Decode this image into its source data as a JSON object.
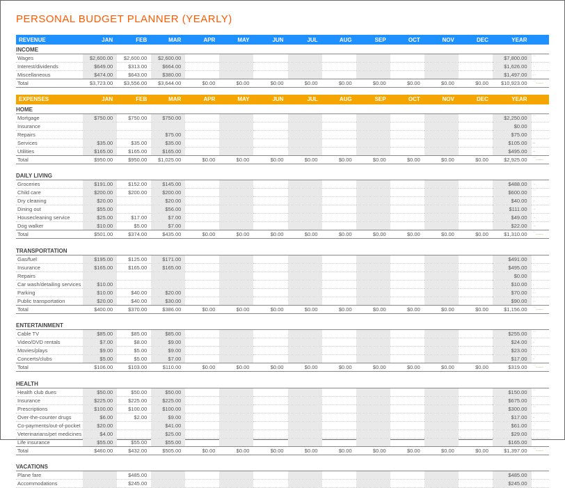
{
  "title": "PERSONAL BUDGET PLANNER (YEARLY)",
  "months": [
    "JAN",
    "FEB",
    "MAR",
    "APR",
    "MAY",
    "JUN",
    "JUL",
    "AUG",
    "SEP",
    "OCT",
    "NOV",
    "DEC"
  ],
  "yearLabel": "YEAR",
  "revenueHeader": "REVENUE",
  "expensesHeader": "EXPENSES",
  "incomeSection": {
    "name": "INCOME",
    "rows": [
      {
        "label": "Wages",
        "vals": [
          "$2,600.00",
          "$2,600.00",
          "$2,600.00",
          "",
          "",
          "",
          "",
          "",
          "",
          "",
          "",
          ""
        ],
        "year": "$7,800.00",
        "spark": "ˈˈˈ"
      },
      {
        "label": "Interest/dividends",
        "vals": [
          "$649.00",
          "$313.00",
          "$664.00",
          "",
          "",
          "",
          "",
          "",
          "",
          "",
          "",
          ""
        ],
        "year": "$1,626.00",
        "spark": "ˈ.ˈ"
      },
      {
        "label": "Miscellaneous",
        "vals": [
          "$474.00",
          "$643.00",
          "$380.00",
          "",
          "",
          "",
          "",
          "",
          "",
          "",
          "",
          ""
        ],
        "year": "$1,497.00",
        "spark": ".ˈ."
      }
    ],
    "total": {
      "label": "Total",
      "vals": [
        "$3,723.00",
        "$3,556.00",
        "$3,644.00",
        "$0.00",
        "$0.00",
        "$0.00",
        "$0.00",
        "$0.00",
        "$0.00",
        "$0.00",
        "$0.00",
        "$0.00"
      ],
      "year": "$10,923.00",
      "spark": "ˈˈˈ........."
    }
  },
  "expenseSections": [
    {
      "name": "HOME",
      "rows": [
        {
          "label": "Mortgage",
          "vals": [
            "$750.00",
            "$750.00",
            "$750.00",
            "",
            "",
            "",
            "",
            "",
            "",
            "",
            "",
            ""
          ],
          "year": "$2,250.00",
          "spark": "ˈˈˈ"
        },
        {
          "label": "Insurance",
          "vals": [
            "",
            "",
            "",
            "",
            "",
            "",
            "",
            "",
            "",
            "",
            "",
            ""
          ],
          "year": "$0.00",
          "spark": ""
        },
        {
          "label": "Repairs",
          "vals": [
            "",
            "",
            "$75.00",
            "",
            "",
            "",
            "",
            "",
            "",
            "",
            "",
            ""
          ],
          "year": "$75.00",
          "spark": "  ˈ"
        },
        {
          "label": "Services",
          "vals": [
            "$35.00",
            "$35.00",
            "$35.00",
            "",
            "",
            "",
            "",
            "",
            "",
            "",
            "",
            ""
          ],
          "year": "$105.00",
          "spark": "..."
        },
        {
          "label": "Utilities",
          "vals": [
            "$165.00",
            "$165.00",
            "$165.00",
            "",
            "",
            "",
            "",
            "",
            "",
            "",
            "",
            ""
          ],
          "year": "$495.00",
          "spark": "..."
        }
      ],
      "total": {
        "label": "Total",
        "vals": [
          "$950.00",
          "$950.00",
          "$1,025.00",
          "$0.00",
          "$0.00",
          "$0.00",
          "$0.00",
          "$0.00",
          "$0.00",
          "$0.00",
          "$0.00",
          "$0.00"
        ],
        "year": "$2,925.00",
        "spark": "ˈˈˈ........."
      }
    },
    {
      "name": "DAILY LIVING",
      "rows": [
        {
          "label": "Groceries",
          "vals": [
            "$191.00",
            "$152.00",
            "$145.00",
            "",
            "",
            "",
            "",
            "",
            "",
            "",
            "",
            ""
          ],
          "year": "$488.00",
          "spark": "ˈ.."
        },
        {
          "label": "Child care",
          "vals": [
            "$200.00",
            "$200.00",
            "$200.00",
            "",
            "",
            "",
            "",
            "",
            "",
            "",
            "",
            ""
          ],
          "year": "$600.00",
          "spark": "ˈˈˈ"
        },
        {
          "label": "Dry cleaning",
          "vals": [
            "$20.00",
            "",
            "$20.00",
            "",
            "",
            "",
            "",
            "",
            "",
            "",
            "",
            ""
          ],
          "year": "$40.00",
          "spark": ". ."
        },
        {
          "label": "Dining out",
          "vals": [
            "$55.00",
            "",
            "$56.00",
            "",
            "",
            "",
            "",
            "",
            "",
            "",
            "",
            ""
          ],
          "year": "$111.00",
          "spark": ". ."
        },
        {
          "label": "Housecleaning service",
          "vals": [
            "$25.00",
            "$17.00",
            "$7.00",
            "",
            "",
            "",
            "",
            "",
            "",
            "",
            "",
            ""
          ],
          "year": "$49.00",
          "spark": "ˈ.."
        },
        {
          "label": "Dog walker",
          "vals": [
            "$10.00",
            "$5.00",
            "$7.00",
            "",
            "",
            "",
            "",
            "",
            "",
            "",
            "",
            ""
          ],
          "year": "$22.00",
          "spark": "ˈ.."
        }
      ],
      "total": {
        "label": "Total",
        "vals": [
          "$501.00",
          "$374.00",
          "$435.00",
          "$0.00",
          "$0.00",
          "$0.00",
          "$0.00",
          "$0.00",
          "$0.00",
          "$0.00",
          "$0.00",
          "$0.00"
        ],
        "year": "$1,310.00",
        "spark": "ˈˈˈ........."
      }
    },
    {
      "name": "TRANSPORTATION",
      "rows": [
        {
          "label": "Gas/fuel",
          "vals": [
            "$195.00",
            "$125.00",
            "$171.00",
            "",
            "",
            "",
            "",
            "",
            "",
            "",
            "",
            ""
          ],
          "year": "$491.00",
          "spark": "ˈ.ˈ"
        },
        {
          "label": "Insurance",
          "vals": [
            "$165.00",
            "$165.00",
            "$165.00",
            "",
            "",
            "",
            "",
            "",
            "",
            "",
            "",
            ""
          ],
          "year": "$495.00",
          "spark": "ˈˈˈ"
        },
        {
          "label": "Repairs",
          "vals": [
            "",
            "",
            "",
            "",
            "",
            "",
            "",
            "",
            "",
            "",
            "",
            ""
          ],
          "year": "$0.00",
          "spark": ""
        },
        {
          "label": "Car wash/detailing services",
          "vals": [
            "$10.00",
            "",
            "",
            "",
            "",
            "",
            "",
            "",
            "",
            "",
            "",
            ""
          ],
          "year": "$10.00",
          "spark": "."
        },
        {
          "label": "Parking",
          "vals": [
            "$10.00",
            "$40.00",
            "$20.00",
            "",
            "",
            "",
            "",
            "",
            "",
            "",
            "",
            ""
          ],
          "year": "$70.00",
          "spark": ".ˈ."
        },
        {
          "label": "Public transportation",
          "vals": [
            "$20.00",
            "$40.00",
            "$30.00",
            "",
            "",
            "",
            "",
            "",
            "",
            "",
            "",
            ""
          ],
          "year": "$90.00",
          "spark": ".ˈ."
        }
      ],
      "total": {
        "label": "Total",
        "vals": [
          "$400.00",
          "$370.00",
          "$386.00",
          "$0.00",
          "$0.00",
          "$0.00",
          "$0.00",
          "$0.00",
          "$0.00",
          "$0.00",
          "$0.00",
          "$0.00"
        ],
        "year": "$1,156.00",
        "spark": "ˈˈˈ........."
      }
    },
    {
      "name": "ENTERTAINMENT",
      "rows": [
        {
          "label": "Cable TV",
          "vals": [
            "$85.00",
            "$85.00",
            "$85.00",
            "",
            "",
            "",
            "",
            "",
            "",
            "",
            "",
            ""
          ],
          "year": "$255.00",
          "spark": "ˈˈˈ"
        },
        {
          "label": "Video/DVD rentals",
          "vals": [
            "$7.00",
            "$8.00",
            "$9.00",
            "",
            "",
            "",
            "",
            "",
            "",
            "",
            "",
            ""
          ],
          "year": "$24.00",
          "spark": "..ˈ"
        },
        {
          "label": "Movies/plays",
          "vals": [
            "$9.00",
            "$5.00",
            "$9.00",
            "",
            "",
            "",
            "",
            "",
            "",
            "",
            "",
            ""
          ],
          "year": "$23.00",
          "spark": "ˈ.ˈ"
        },
        {
          "label": "Concerts/clubs",
          "vals": [
            "$5.00",
            "$5.00",
            "$7.00",
            "",
            "",
            "",
            "",
            "",
            "",
            "",
            "",
            ""
          ],
          "year": "$17.00",
          "spark": "..ˈ"
        }
      ],
      "total": {
        "label": "Total",
        "vals": [
          "$106.00",
          "$103.00",
          "$110.00",
          "$0.00",
          "$0.00",
          "$0.00",
          "$0.00",
          "$0.00",
          "$0.00",
          "$0.00",
          "$0.00",
          "$0.00"
        ],
        "year": "$319.00",
        "spark": "ˈˈˈ........."
      }
    },
    {
      "name": "HEALTH",
      "rows": [
        {
          "label": "Health club dues",
          "vals": [
            "$50.00",
            "$50.00",
            "$50.00",
            "",
            "",
            "",
            "",
            "",
            "",
            "",
            "",
            ""
          ],
          "year": "$150.00",
          "spark": "ˈˈˈ"
        },
        {
          "label": "Insurance",
          "vals": [
            "$225.00",
            "$225.00",
            "$225.00",
            "",
            "",
            "",
            "",
            "",
            "",
            "",
            "",
            ""
          ],
          "year": "$675.00",
          "spark": "ˈˈˈ"
        },
        {
          "label": "Prescriptions",
          "vals": [
            "$100.00",
            "$100.00",
            "$100.00",
            "",
            "",
            "",
            "",
            "",
            "",
            "",
            "",
            ""
          ],
          "year": "$300.00",
          "spark": "ˈˈˈ"
        },
        {
          "label": "Over-the-counter drugs",
          "vals": [
            "$6.00",
            "$2.00",
            "$9.00",
            "",
            "",
            "",
            "",
            "",
            "",
            "",
            "",
            ""
          ],
          "year": "$17.00",
          "spark": "..ˈ"
        },
        {
          "label": "Co-payments/out-of-pocket",
          "vals": [
            "$20.00",
            "",
            "$41.00",
            "",
            "",
            "",
            "",
            "",
            "",
            "",
            "",
            ""
          ],
          "year": "$61.00",
          "spark": ". ˈ"
        },
        {
          "label": "Veterinarians/pet medicines",
          "vals": [
            "$4.00",
            "",
            "$25.00",
            "",
            "",
            "",
            "",
            "",
            "",
            "",
            "",
            ""
          ],
          "year": "$29.00",
          "spark": ". ˈ"
        },
        {
          "label": "Life insurance",
          "vals": [
            "$55.00",
            "$55.00",
            "$55.00",
            "",
            "",
            "",
            "",
            "",
            "",
            "",
            "",
            ""
          ],
          "year": "$165.00",
          "spark": "ˈˈˈ"
        }
      ],
      "total": {
        "label": "Total",
        "vals": [
          "$460.00",
          "$432.00",
          "$505.00",
          "$0.00",
          "$0.00",
          "$0.00",
          "$0.00",
          "$0.00",
          "$0.00",
          "$0.00",
          "$0.00",
          "$0.00"
        ],
        "year": "$1,397.00",
        "spark": "ˈˈˈ........."
      }
    },
    {
      "name": "VACATIONS",
      "rows": [
        {
          "label": "Plane fare",
          "vals": [
            "",
            "$485.00",
            "",
            "",
            "",
            "",
            "",
            "",
            "",
            "",
            "",
            ""
          ],
          "year": "$485.00",
          "spark": " ˈ"
        },
        {
          "label": "Accommodations",
          "vals": [
            "",
            "$245.00",
            "",
            "",
            "",
            "",
            "",
            "",
            "",
            "",
            "",
            ""
          ],
          "year": "$245.00",
          "spark": " ˈ"
        }
      ],
      "total": null
    }
  ],
  "colors": {
    "title": "#ff5a00",
    "revenueBar": "#1e90ff",
    "expensesBar": "#f5a500",
    "stripe": "#e9e9e9",
    "border": "#888888",
    "dotted": "#cccccc",
    "text": "#555555"
  }
}
